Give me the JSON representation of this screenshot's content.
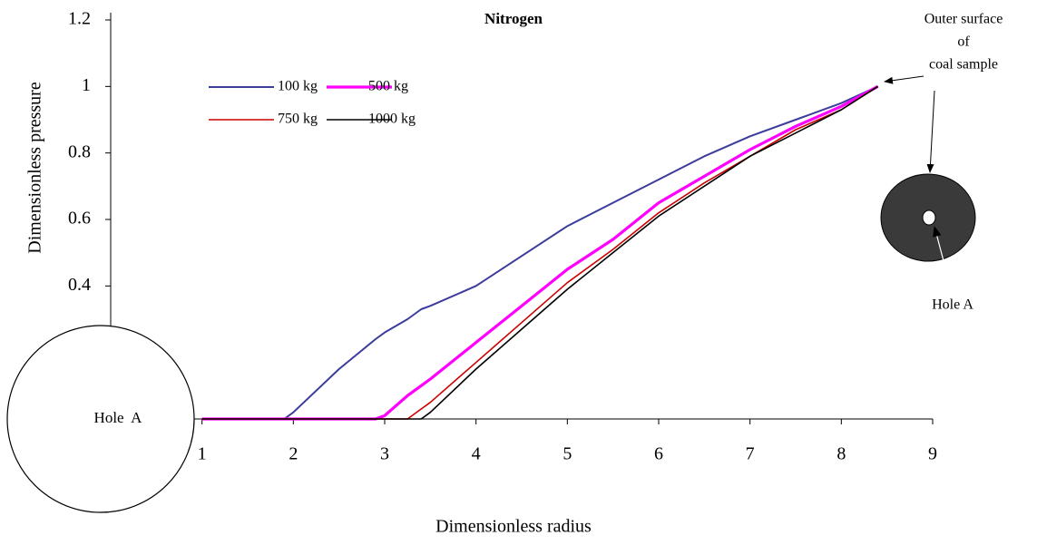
{
  "chart_data": {
    "type": "line",
    "title": "Nitrogen",
    "x_label": "Dimensionless radius",
    "y_label": "Dimensionless pressure",
    "x": [
      1,
      1.9,
      2,
      2.5,
      2.9,
      3,
      3.25,
      3.4,
      3.5,
      4,
      4.5,
      5,
      5.5,
      6,
      6.5,
      7,
      7.5,
      8,
      8.4
    ],
    "series": [
      {
        "name": "100 kg",
        "color": "#3c3c9c",
        "values": [
          0,
          0,
          0.02,
          0.15,
          0.24,
          0.26,
          0.3,
          0.33,
          0.34,
          0.4,
          0.49,
          0.58,
          0.65,
          0.72,
          0.79,
          0.85,
          0.9,
          0.95,
          1
        ]
      },
      {
        "name": "500 kg",
        "color": "#ff00ff",
        "values": [
          0,
          0,
          0,
          0,
          0,
          0.01,
          0.07,
          0.1,
          0.12,
          0.23,
          0.34,
          0.45,
          0.54,
          0.65,
          0.73,
          0.81,
          0.88,
          0.94,
          1
        ]
      },
      {
        "name": "750 kg",
        "color": "#cc0000",
        "values": [
          0,
          0,
          0,
          0,
          0,
          0,
          0,
          0.03,
          0.05,
          0.17,
          0.29,
          0.41,
          0.51,
          0.62,
          0.71,
          0.79,
          0.87,
          0.93,
          1
        ]
      },
      {
        "name": "1000 kg",
        "color": "#000000",
        "values": [
          0,
          0,
          0,
          0,
          0,
          0,
          0,
          0,
          0.02,
          0.15,
          0.27,
          0.39,
          0.5,
          0.61,
          0.7,
          0.79,
          0.86,
          0.93,
          1
        ]
      }
    ],
    "xlim": [
      0,
      9
    ],
    "xticks": [
      1,
      2,
      3,
      4,
      5,
      6,
      7,
      8,
      9
    ],
    "ylim": [
      0,
      1.2
    ],
    "yticks": [
      0.4,
      0.6,
      0.8,
      1,
      1.2
    ],
    "grid": false,
    "annotations": {
      "outer_surface": [
        "Outer surface",
        "of",
        "coal sample"
      ],
      "hole_small": "Hole A",
      "hole_large": "Hole  A"
    }
  }
}
